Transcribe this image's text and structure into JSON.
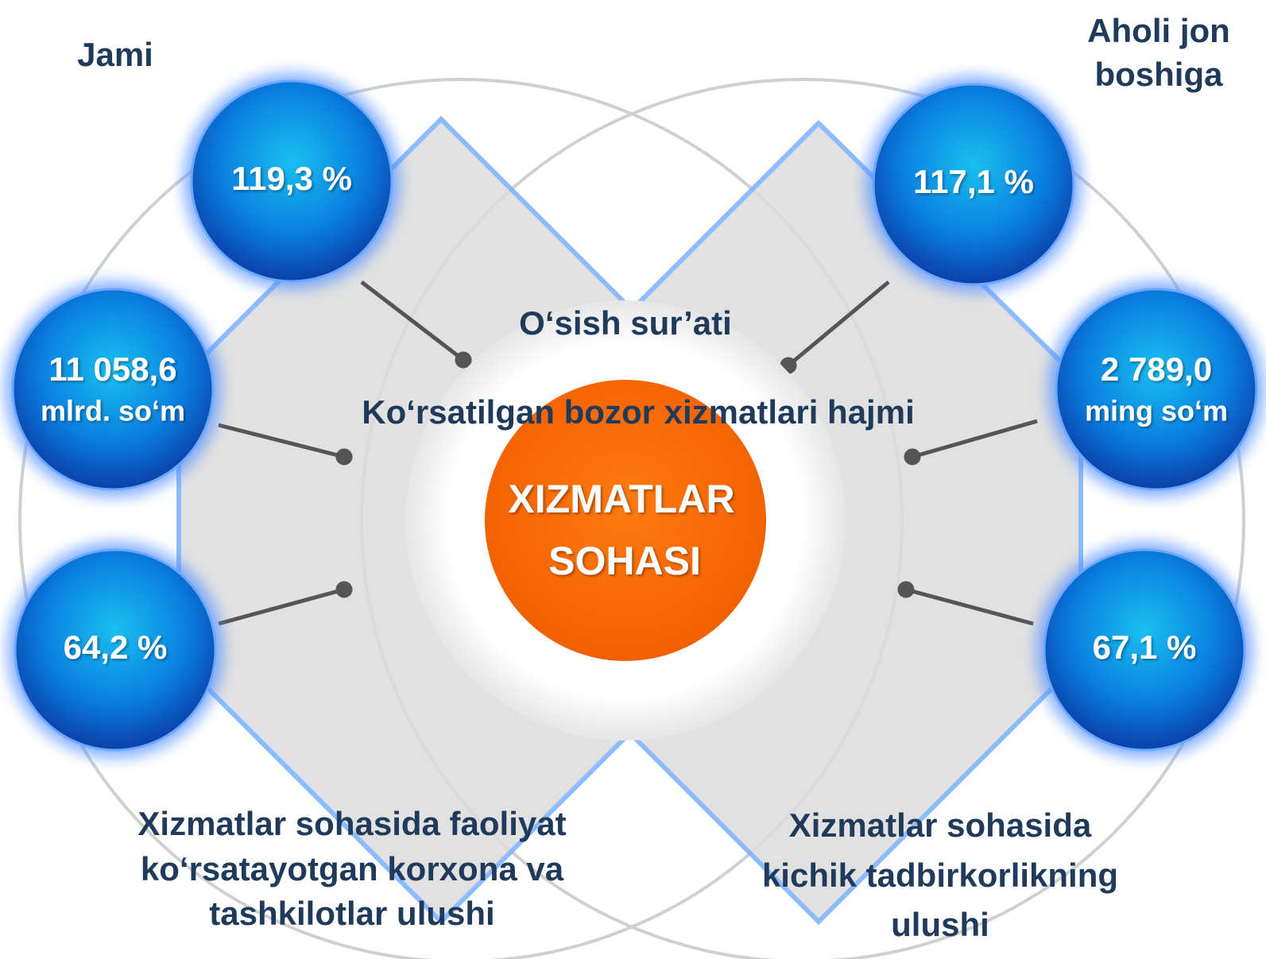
{
  "left_header": "Jami",
  "right_header": [
    "Aholi jon",
    "boshiga"
  ],
  "center": [
    "XIZMATLAR",
    "SOHASI"
  ],
  "growth_label": "O‘sish sur’ati",
  "volume_label": "Ko‘rsatilgan bozor xizmatlari hajmi",
  "bottom_left": [
    "Xizmatlar sohasida faoliyat",
    "ko‘rsatayotgan korxona va",
    "tashkilotlar ulushi"
  ],
  "bottom_right": [
    "Xizmatlar sohasida",
    "kichik tadbirkorlikning",
    "ulushi"
  ],
  "circles": [
    {
      "lines": [
        "119,3 %"
      ]
    },
    {
      "lines": [
        "11 058,6",
        "mlrd. so‘m"
      ]
    },
    {
      "lines": [
        "64,2 %"
      ]
    },
    {
      "lines": [
        "117,1 %"
      ]
    },
    {
      "lines": [
        "2 789,0",
        "ming so‘m"
      ]
    },
    {
      "lines": [
        "67,1 %"
      ]
    }
  ]
}
